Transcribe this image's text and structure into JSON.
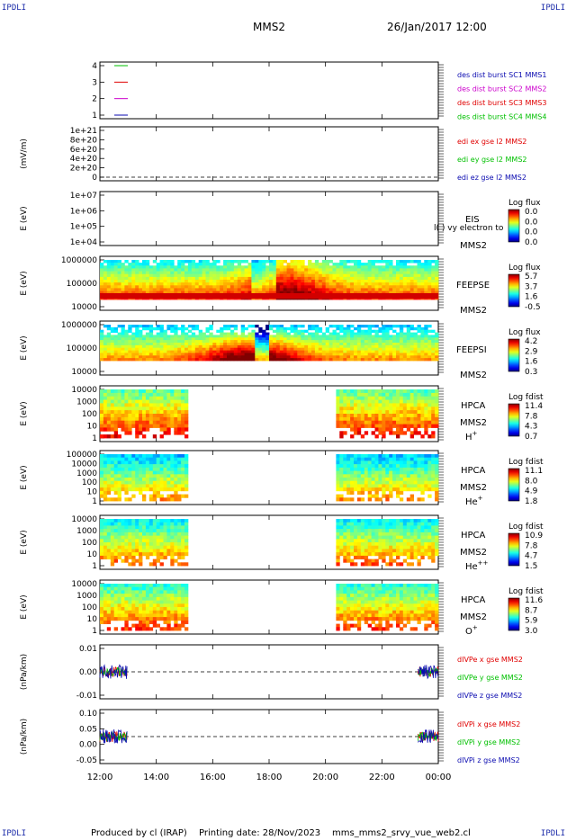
{
  "header": {
    "corner_label": "IPDLI",
    "spacecraft": "MMS2",
    "datetime": "26/Jan/2017 12:00"
  },
  "footer": {
    "produced_by": "Produced by cl (IRAP)",
    "printing_date": "Printing date: 28/Nov/2023",
    "filename": "mms_mms2_srvy_vue_web2.cl"
  },
  "colors": {
    "mms1": "#0a0ab0",
    "mms2": "#cc00cc",
    "mms3": "#e00000",
    "mms4": "#00c000",
    "red": "#e00000",
    "green": "#00c000",
    "blue": "#0a0ab0"
  },
  "chart_data": {
    "type": "line",
    "x_ticks": [
      "12:00",
      "14:00",
      "16:00",
      "18:00",
      "20:00",
      "22:00",
      "00:00"
    ],
    "panels": [
      {
        "id": "burst",
        "type": "line",
        "ylabel": "",
        "ticks": [
          "4",
          "3",
          "2",
          "1"
        ],
        "legend": [
          {
            "text": "des dist burst SC1 MMS1",
            "color": "#0a0ab0"
          },
          {
            "text": "des dist burst SC2 MMS2",
            "color": "#cc00cc"
          },
          {
            "text": "des dist burst SC3 MMS3",
            "color": "#e00000"
          },
          {
            "text": "des dist burst SC4 MMS4",
            "color": "#00c000"
          }
        ],
        "series": [
          {
            "level": 4,
            "color": "#00c000"
          },
          {
            "level": 3,
            "color": "#e00000"
          },
          {
            "level": 2,
            "color": "#cc00cc"
          },
          {
            "level": 1,
            "color": "#0a0ab0"
          }
        ]
      },
      {
        "id": "edi",
        "type": "line",
        "ylabel": "(mV/m)",
        "ticks": [
          "1e+21",
          "8e+20",
          "6e+20",
          "4e+20",
          "2e+20",
          "0"
        ],
        "legend": [
          {
            "text": "edi ex gse l2 MMS2",
            "color": "#e00000"
          },
          {
            "text": "edi ey gse l2 MMS2",
            "color": "#00c000"
          },
          {
            "text": "edi ez gse l2 MMS2",
            "color": "#0a0ab0"
          }
        ]
      },
      {
        "id": "eis",
        "type": "heatmap",
        "ylabel": "E (eV)",
        "ticks": [
          "1e+07",
          "1e+06",
          "1e+05",
          "1e+04"
        ],
        "side_label": [
          "EIS"
        ],
        "sub_label": "MMS2",
        "overlay_text": "l( ) vy electron to",
        "cbar_title": "Log flux",
        "cbar_values": [
          "0.0",
          "0.0",
          "0.0",
          "0.0"
        ]
      },
      {
        "id": "feepse",
        "type": "heatmap",
        "ylabel": "E (eV)",
        "ticks": [
          "1000000",
          "100000",
          "10000"
        ],
        "side_label": [
          "FEEPSE"
        ],
        "sub_label": "MMS2",
        "cbar_title": "Log flux",
        "cbar_values": [
          "5.7",
          "3.7",
          "1.6",
          "-0.5"
        ]
      },
      {
        "id": "feepsi",
        "type": "heatmap",
        "ylabel": "E (eV)",
        "ticks": [
          "1000000",
          "100000",
          "10000"
        ],
        "side_label": [
          "FEEPSI"
        ],
        "sub_label": "MMS2",
        "cbar_title": "Log flux",
        "cbar_values": [
          "4.2",
          "2.9",
          "1.6",
          "0.3"
        ]
      },
      {
        "id": "hpca_h",
        "type": "heatmap",
        "ylabel": "E (eV)",
        "ticks": [
          "10000",
          "1000",
          "100",
          "10",
          "1"
        ],
        "side_label": [
          "HPCA",
          "MMS2"
        ],
        "species": "H",
        "species_sup": "+",
        "cbar_title": "Log fdist",
        "cbar_values": [
          "11.4",
          "7.8",
          "4.3",
          "0.7"
        ]
      },
      {
        "id": "hpca_he",
        "type": "heatmap",
        "ylabel": "E (eV)",
        "ticks": [
          "100000",
          "10000",
          "1000",
          "100",
          "10",
          "1"
        ],
        "side_label": [
          "HPCA",
          "MMS2"
        ],
        "species": "He",
        "species_sup": "+",
        "cbar_title": "Log fdist",
        "cbar_values": [
          "11.1",
          "8.0",
          "4.9",
          "1.8"
        ]
      },
      {
        "id": "hpca_hepp",
        "type": "heatmap",
        "ylabel": "E (eV)",
        "ticks": [
          "10000",
          "1000",
          "100",
          "10",
          "1"
        ],
        "side_label": [
          "HPCA",
          "MMS2"
        ],
        "species": "He",
        "species_sup": "++",
        "cbar_title": "Log fdist",
        "cbar_values": [
          "10.9",
          "7.8",
          "4.7",
          "1.5"
        ]
      },
      {
        "id": "hpca_o",
        "type": "heatmap",
        "ylabel": "E (eV)",
        "ticks": [
          "10000",
          "1000",
          "100",
          "10",
          "1"
        ],
        "side_label": [
          "HPCA",
          "MMS2"
        ],
        "species": "O",
        "species_sup": "+",
        "cbar_title": "Log fdist",
        "cbar_values": [
          "11.6",
          "8.7",
          "5.9",
          "3.0"
        ]
      },
      {
        "id": "divpe",
        "type": "line",
        "ylabel": "(nPa/km)",
        "ticks": [
          "0.01",
          "0.00",
          "-0.01"
        ],
        "legend": [
          {
            "text": "dIVPe x gse MMS2",
            "color": "#e00000"
          },
          {
            "text": "dIVPe y gse MMS2",
            "color": "#00c000"
          },
          {
            "text": "dIVPe z gse MMS2",
            "color": "#0a0ab0"
          }
        ]
      },
      {
        "id": "divpi",
        "type": "line",
        "ylabel": "(nPa/km)",
        "ticks": [
          "0.10",
          "0.05",
          "0.00",
          "-0.05"
        ],
        "legend": [
          {
            "text": "dIVPi x gse MMS2",
            "color": "#e00000"
          },
          {
            "text": "dIVPi y gse MMS2",
            "color": "#00c000"
          },
          {
            "text": "dIVPi z gse MMS2",
            "color": "#0a0ab0"
          }
        ]
      }
    ]
  }
}
